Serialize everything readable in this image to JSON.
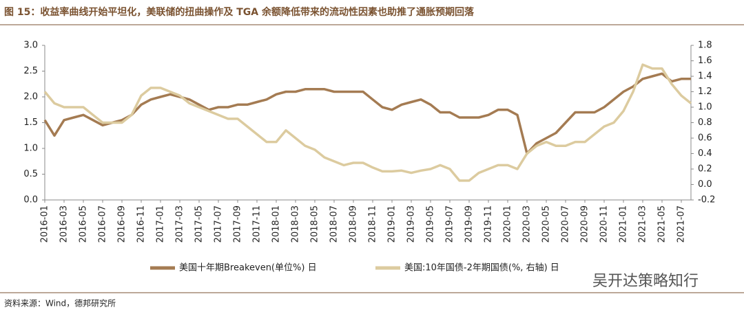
{
  "chart_data": {
    "type": "line",
    "title": "图 15：收益率曲线开始平坦化，美联储的扭曲操作及 TGA 余额降低带来的流动性因素也助推了通胀预期回落",
    "source": "资料来源：Wind，德邦研究所",
    "watermark": "吴开达策略知行",
    "categories": [
      "2016-01",
      null,
      "2016-03",
      null,
      "2016-05",
      null,
      "2016-07",
      null,
      "2016-09",
      null,
      "2016-11",
      null,
      "2017-01",
      null,
      "2017-03",
      null,
      "2017-05",
      null,
      "2017-07",
      null,
      "2017-09",
      null,
      "2017-11",
      null,
      "2018-01",
      null,
      "2018-03",
      null,
      "2018-05",
      null,
      "2018-07",
      null,
      "2018-09",
      null,
      "2018-11",
      null,
      "2019-01",
      null,
      "2019-03",
      null,
      "2019-05",
      null,
      "2019-07",
      null,
      "2019-09",
      null,
      "2019-11",
      null,
      "2020-01",
      null,
      "2020-03",
      null,
      "2020-05",
      null,
      "2020-07",
      null,
      "2020-09",
      null,
      "2020-11",
      null,
      "2021-01",
      null,
      "2021-03",
      null,
      "2021-05",
      null,
      "2021-07",
      null
    ],
    "series": [
      {
        "name": "美国十年期Breakeven(单位%) 日",
        "color": "#a47b52",
        "axis": "y",
        "values": [
          1.55,
          1.25,
          1.55,
          1.6,
          1.65,
          1.55,
          1.45,
          1.5,
          1.55,
          1.65,
          1.85,
          1.95,
          2.0,
          2.05,
          2.0,
          1.95,
          1.85,
          1.75,
          1.8,
          1.8,
          1.85,
          1.85,
          1.9,
          1.95,
          2.05,
          2.1,
          2.1,
          2.15,
          2.15,
          2.15,
          2.1,
          2.1,
          2.1,
          2.1,
          1.95,
          1.8,
          1.75,
          1.85,
          1.9,
          1.95,
          1.85,
          1.7,
          1.7,
          1.6,
          1.6,
          1.6,
          1.65,
          1.75,
          1.75,
          1.65,
          0.9,
          1.1,
          1.2,
          1.3,
          1.5,
          1.7,
          1.7,
          1.7,
          1.8,
          1.95,
          2.1,
          2.2,
          2.35,
          2.4,
          2.45,
          2.3,
          2.35,
          2.35
        ]
      },
      {
        "name": "美国:10年国债-2年期国债(%, 右轴) 日",
        "color": "#dccb9f",
        "axis": "y2",
        "values": [
          1.2,
          1.05,
          1.0,
          1.0,
          1.0,
          0.9,
          0.8,
          0.8,
          0.8,
          0.9,
          1.15,
          1.25,
          1.25,
          1.2,
          1.15,
          1.05,
          1.0,
          0.95,
          0.9,
          0.85,
          0.85,
          0.75,
          0.65,
          0.55,
          0.55,
          0.7,
          0.6,
          0.5,
          0.45,
          0.35,
          0.3,
          0.25,
          0.28,
          0.28,
          0.22,
          0.17,
          0.17,
          0.18,
          0.15,
          0.18,
          0.2,
          0.25,
          0.2,
          0.05,
          0.05,
          0.15,
          0.2,
          0.25,
          0.25,
          0.2,
          0.4,
          0.5,
          0.55,
          0.5,
          0.5,
          0.55,
          0.55,
          0.65,
          0.75,
          0.8,
          0.95,
          1.2,
          1.55,
          1.5,
          1.5,
          1.3,
          1.15,
          1.05
        ]
      }
    ],
    "ylim": [
      0,
      3
    ],
    "yticks": [
      {
        "value": 0,
        "label": "0.0"
      },
      0.5,
      {
        "value": 1,
        "label": "1.0"
      },
      1.5,
      {
        "value": 2,
        "label": "2.0"
      },
      2.5,
      {
        "value": 3,
        "label": "3.0"
      }
    ],
    "y2lim": [
      -0.2,
      1.8
    ],
    "y2ticks": [
      -0.2,
      {
        "value": 0,
        "label": "0.0"
      },
      0.2,
      0.4,
      0.6,
      0.8,
      {
        "value": 1,
        "label": "1.0"
      },
      1.2,
      1.4,
      1.6,
      1.8
    ],
    "legend": "bottom",
    "grid": false
  }
}
